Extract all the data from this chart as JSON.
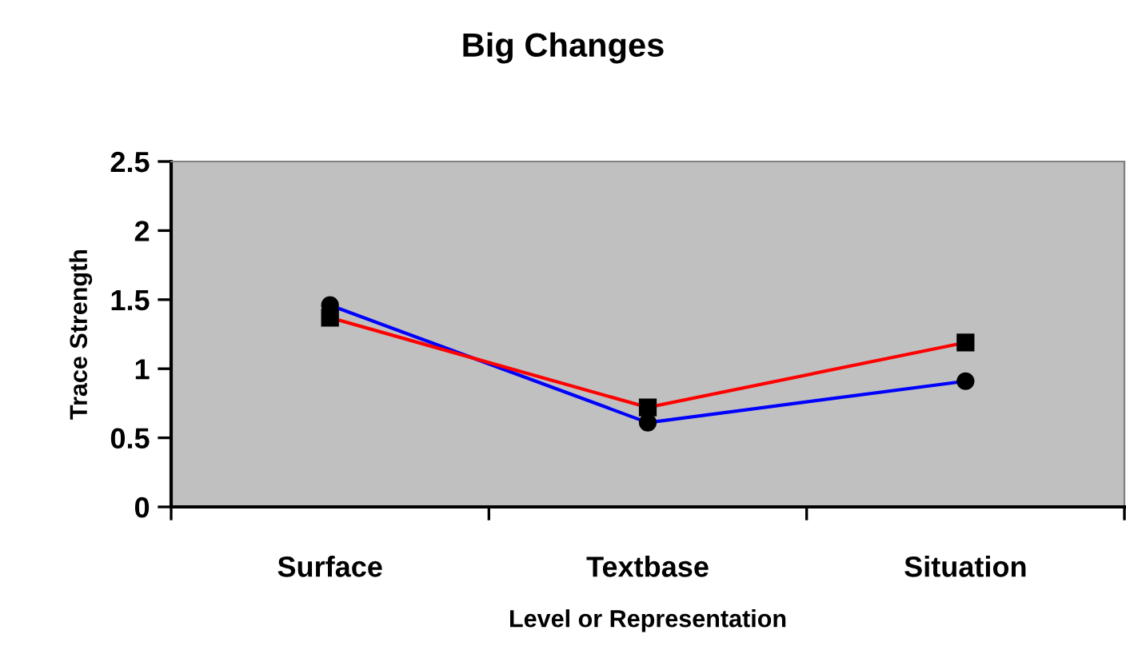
{
  "chart_data": {
    "type": "line",
    "title": "Big Changes",
    "xlabel": "Level or Representation",
    "ylabel": "Trace Strength",
    "categories": [
      "Surface",
      "Textbase",
      "Situation"
    ],
    "series": [
      {
        "color": "#0000ff",
        "marker": "circle",
        "values": [
          1.46,
          0.61,
          0.91
        ]
      },
      {
        "color": "#ff0000",
        "marker": "square",
        "values": [
          1.37,
          0.72,
          1.19
        ]
      }
    ],
    "ylim": [
      0,
      2.5
    ],
    "yticks": [
      0,
      0.5,
      1,
      1.5,
      2,
      2.5
    ],
    "grid": false,
    "legend": false
  }
}
